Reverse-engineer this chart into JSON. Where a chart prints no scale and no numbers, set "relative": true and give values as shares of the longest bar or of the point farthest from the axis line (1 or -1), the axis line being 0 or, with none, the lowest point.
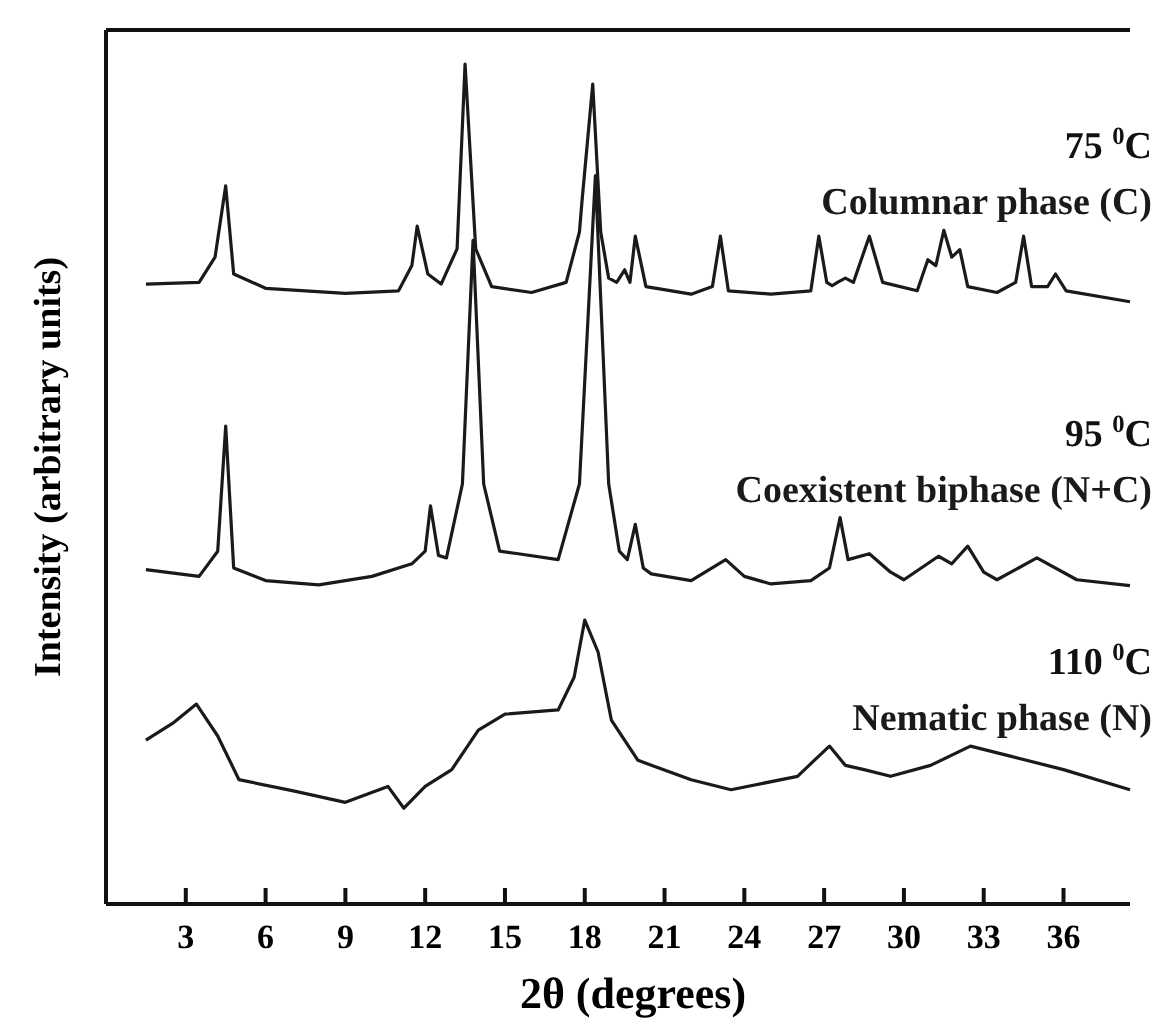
{
  "chart_data": {
    "type": "line",
    "relative": true,
    "xlabel": "2θ (degrees)",
    "ylabel": "Intensity (arbitrary units)",
    "xlim": [
      0,
      38.5
    ],
    "xticks": [
      3,
      6,
      9,
      12,
      15,
      18,
      21,
      24,
      27,
      30,
      33,
      36
    ],
    "grid": false,
    "legend": false,
    "marker": "none",
    "line_style": "solid",
    "annotations": [
      "75 $^{0}$C",
      "95 $^{0}$C",
      "110 $^{0}$C"
    ],
    "series": [
      {
        "name": "Columnar phase (C)",
        "color": "#1a1a1a",
        "x": [
          1.5,
          3.5,
          4.1,
          4.5,
          4.8,
          6,
          9,
          11,
          11.5,
          11.7,
          12.1,
          12.6,
          13.2,
          13.5,
          13.9,
          14.5,
          16,
          17.3,
          17.8,
          17.9,
          18.3,
          18.6,
          18.9,
          19.2,
          19.5,
          19.7,
          19.9,
          20.3,
          22,
          22.8,
          23.1,
          23.4,
          25,
          26.5,
          26.8,
          27.1,
          27.3,
          27.5,
          27.8,
          28.1,
          28.7,
          29.2,
          30.5,
          30.9,
          31.2,
          31.5,
          31.8,
          32.1,
          32.4,
          33.5,
          34.2,
          34.5,
          34.8,
          35.4,
          35.7,
          36.1,
          38.5
        ],
        "values": [
          0.738,
          0.74,
          0.77,
          0.855,
          0.75,
          0.733,
          0.727,
          0.73,
          0.76,
          0.807,
          0.75,
          0.738,
          0.78,
          1.0,
          0.78,
          0.735,
          0.728,
          0.74,
          0.8,
          0.838,
          0.976,
          0.8,
          0.745,
          0.74,
          0.755,
          0.74,
          0.795,
          0.735,
          0.726,
          0.735,
          0.795,
          0.73,
          0.726,
          0.73,
          0.795,
          0.74,
          0.736,
          0.74,
          0.745,
          0.74,
          0.795,
          0.74,
          0.73,
          0.767,
          0.76,
          0.802,
          0.77,
          0.779,
          0.735,
          0.728,
          0.74,
          0.795,
          0.735,
          0.735,
          0.75,
          0.73,
          0.717
        ]
      },
      {
        "name": "Coexistent biphase (N+C)",
        "color": "#1a1a1a",
        "x": [
          1.5,
          3.5,
          4.2,
          4.5,
          4.8,
          6,
          8,
          10,
          11.5,
          12,
          12.2,
          12.5,
          12.8,
          13.4,
          13.8,
          14.2,
          14.8,
          15.5,
          17,
          17.8,
          18.4,
          18.9,
          19.3,
          19.6,
          19.9,
          20.2,
          20.5,
          22,
          23.3,
          24,
          25,
          26.5,
          27.2,
          27.6,
          27.9,
          28.7,
          29.5,
          30,
          31.3,
          31.8,
          32.4,
          33,
          33.5,
          35,
          36.5,
          38.5
        ],
        "values": [
          0.398,
          0.39,
          0.42,
          0.569,
          0.4,
          0.385,
          0.38,
          0.39,
          0.405,
          0.42,
          0.474,
          0.415,
          0.412,
          0.5,
          0.79,
          0.5,
          0.42,
          0.417,
          0.41,
          0.5,
          0.867,
          0.5,
          0.42,
          0.41,
          0.452,
          0.4,
          0.393,
          0.385,
          0.41,
          0.39,
          0.381,
          0.385,
          0.4,
          0.46,
          0.41,
          0.417,
          0.395,
          0.386,
          0.414,
          0.405,
          0.426,
          0.395,
          0.386,
          0.412,
          0.386,
          0.379
        ]
      },
      {
        "name": "Nematic phase (N)",
        "color": "#1a1a1a",
        "x": [
          1.5,
          2.5,
          3.4,
          4.2,
          5,
          7,
          9,
          10.6,
          11.2,
          12,
          13,
          14,
          15,
          17,
          17.6,
          18,
          18.5,
          19,
          20,
          22,
          23.5,
          26,
          26.6,
          27.2,
          27.8,
          28.5,
          29.5,
          31,
          32.5,
          34,
          36,
          38.5
        ],
        "values": [
          0.195,
          0.215,
          0.238,
          0.2,
          0.148,
          0.135,
          0.121,
          0.14,
          0.114,
          0.14,
          0.16,
          0.207,
          0.226,
          0.231,
          0.27,
          0.338,
          0.3,
          0.219,
          0.171,
          0.148,
          0.136,
          0.152,
          0.17,
          0.188,
          0.165,
          0.16,
          0.152,
          0.165,
          0.188,
          0.176,
          0.16,
          0.136
        ]
      }
    ]
  }
}
